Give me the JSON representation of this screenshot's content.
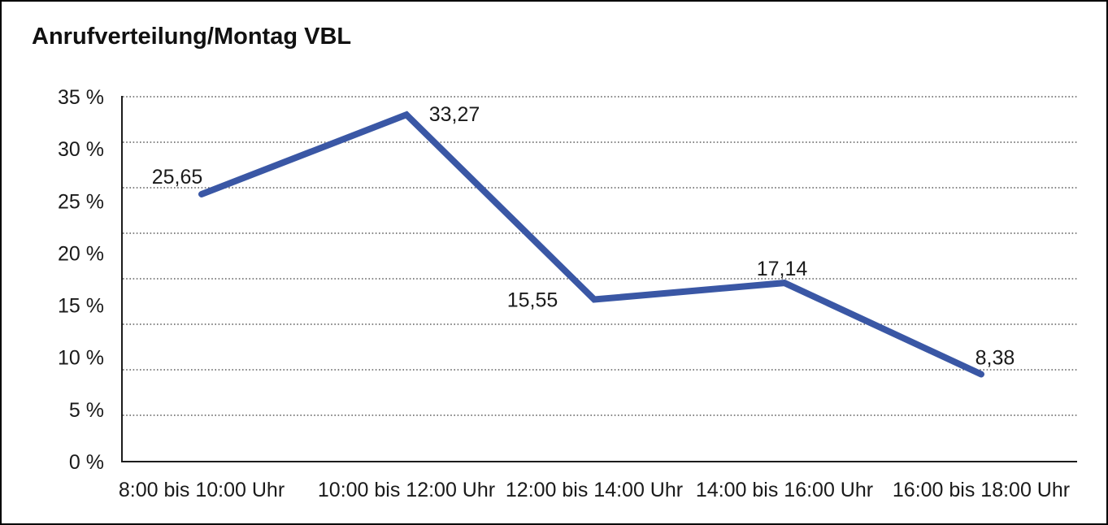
{
  "chart_data": {
    "type": "line",
    "title": "Anrufverteilung/Montag VBL",
    "categories": [
      "8:00 bis 10:00 Uhr",
      "10:00 bis 12:00 Uhr",
      "12:00 bis 14:00 Uhr",
      "14:00 bis 16:00 Uhr",
      "16:00 bis 18:00 Uhr"
    ],
    "values": [
      25.65,
      33.27,
      15.55,
      17.14,
      8.38
    ],
    "value_labels": [
      "25,65",
      "33,27",
      "15,55",
      "17,14",
      "8,38"
    ],
    "y_ticks": [
      {
        "value": 35,
        "label": "35 %"
      },
      {
        "value": 30,
        "label": "30 %"
      },
      {
        "value": 25,
        "label": "25 %"
      },
      {
        "value": 20,
        "label": "20 %"
      },
      {
        "value": 15,
        "label": "15 %"
      },
      {
        "value": 10,
        "label": "10 %"
      },
      {
        "value": 5,
        "label": "5 %"
      },
      {
        "value": 0,
        "label": "0 %"
      }
    ],
    "ylim": [
      0,
      35
    ],
    "xlabel": "",
    "ylabel": "",
    "legend": "none",
    "grid": "horizontal-dotted",
    "colors": {
      "line": "#3A57A5",
      "axis": "#1c1c1c",
      "gridline": "#5f5f5f",
      "text": "#1a1a1a"
    }
  }
}
